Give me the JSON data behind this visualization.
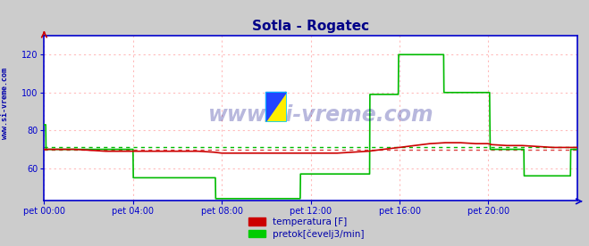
{
  "title": "Sotla - Rogatec",
  "title_color": "#000088",
  "title_fontsize": 11,
  "bg_color": "#cccccc",
  "plot_bg_color": "#ffffff",
  "grid_color": "#ffbbbb",
  "ylabel_text": "www.si-vreme.com",
  "ylabel_color": "#0000aa",
  "xticklabels": [
    "pet 00:00",
    "pet 04:00",
    "pet 08:00",
    "pet 12:00",
    "pet 16:00",
    "pet 20:00"
  ],
  "xtick_positions": [
    0,
    288,
    576,
    864,
    1152,
    1440
  ],
  "ylim": [
    43,
    130
  ],
  "yticks": [
    60,
    80,
    100,
    120
  ],
  "xlim": [
    0,
    1728
  ],
  "axis_color": "#0000cc",
  "tick_color": "#0000aa",
  "watermark": "www.si-vreme.com",
  "watermark_color": "#000088",
  "legend_temp_color": "#cc0000",
  "legend_flow_color": "#00cc00",
  "legend_temp_label": "temperatura [F]",
  "legend_flow_label": "pretok[čevelj3/min]",
  "temp_color": "#cc0000",
  "flow_color": "#00bb00",
  "avg_temp_color": "#dd4444",
  "avg_flow_color": "#00bb00",
  "temp_data": [
    [
      0,
      70
    ],
    [
      50,
      70
    ],
    [
      100,
      70
    ],
    [
      150,
      69.5
    ],
    [
      200,
      69
    ],
    [
      250,
      69
    ],
    [
      288,
      69
    ],
    [
      300,
      69
    ],
    [
      350,
      69
    ],
    [
      400,
      69
    ],
    [
      450,
      69
    ],
    [
      500,
      69
    ],
    [
      550,
      68.5
    ],
    [
      576,
      68
    ],
    [
      600,
      68
    ],
    [
      650,
      68
    ],
    [
      700,
      68
    ],
    [
      750,
      68
    ],
    [
      800,
      68
    ],
    [
      850,
      68
    ],
    [
      864,
      68
    ],
    [
      900,
      68
    ],
    [
      950,
      68
    ],
    [
      1000,
      68.5
    ],
    [
      1050,
      69
    ],
    [
      1100,
      70
    ],
    [
      1150,
      71
    ],
    [
      1152,
      71
    ],
    [
      1200,
      72
    ],
    [
      1250,
      73
    ],
    [
      1300,
      73.5
    ],
    [
      1350,
      73.5
    ],
    [
      1400,
      73
    ],
    [
      1440,
      73
    ],
    [
      1450,
      72.5
    ],
    [
      1500,
      72
    ],
    [
      1550,
      72
    ],
    [
      1600,
      71.5
    ],
    [
      1650,
      71
    ],
    [
      1700,
      71
    ],
    [
      1728,
      71
    ]
  ],
  "flow_data": [
    [
      0,
      83
    ],
    [
      5,
      83
    ],
    [
      6,
      70
    ],
    [
      288,
      70
    ],
    [
      289,
      55
    ],
    [
      555,
      55
    ],
    [
      556,
      44
    ],
    [
      830,
      44
    ],
    [
      831,
      57
    ],
    [
      1055,
      57
    ],
    [
      1056,
      99
    ],
    [
      1148,
      99
    ],
    [
      1149,
      120
    ],
    [
      1295,
      120
    ],
    [
      1296,
      100
    ],
    [
      1444,
      100
    ],
    [
      1445,
      82
    ],
    [
      1446,
      70
    ],
    [
      1555,
      70
    ],
    [
      1556,
      56
    ],
    [
      1706,
      56
    ],
    [
      1707,
      70
    ],
    [
      1728,
      70
    ]
  ],
  "avg_temp_value": 70,
  "avg_flow_value": 71
}
